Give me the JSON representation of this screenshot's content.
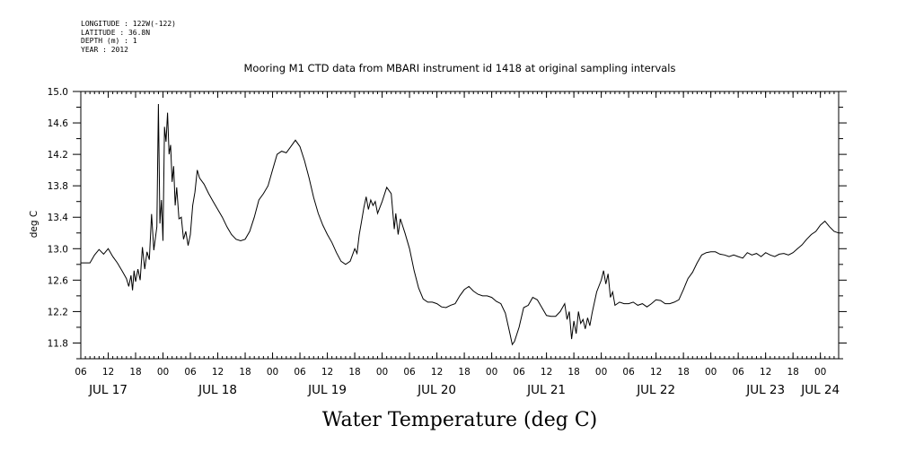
{
  "header": {
    "longitude": "LONGITUDE : 122W(-122)",
    "latitude": "LATITUDE : 36.8N",
    "depth": "DEPTH (m) : 1",
    "year": "YEAR : 2012"
  },
  "chart_data": {
    "type": "line",
    "title": "Mooring M1 CTD data from MBARI instrument id 1418 at original sampling intervals",
    "ylabel": "deg C",
    "xlabel": "Water Temperature (deg C)",
    "ylim": [
      11.6,
      15.0
    ],
    "xlim": [
      "2012-07-17T06:00",
      "2012-07-24T04:00"
    ],
    "grid": false,
    "line_color": "#000000",
    "y_ticks": [
      "11.8",
      "12.2",
      "12.6",
      "13.0",
      "13.4",
      "13.8",
      "14.2",
      "14.6",
      "15.0"
    ],
    "hour_ticks": [
      {
        "t": "2012-07-17T06:00",
        "label": "06"
      },
      {
        "t": "2012-07-17T12:00",
        "label": "12"
      },
      {
        "t": "2012-07-17T18:00",
        "label": "18"
      },
      {
        "t": "2012-07-18T00:00",
        "label": "00"
      },
      {
        "t": "2012-07-18T06:00",
        "label": "06"
      },
      {
        "t": "2012-07-18T12:00",
        "label": "12"
      },
      {
        "t": "2012-07-18T18:00",
        "label": "18"
      },
      {
        "t": "2012-07-19T00:00",
        "label": "00"
      },
      {
        "t": "2012-07-19T06:00",
        "label": "06"
      },
      {
        "t": "2012-07-19T12:00",
        "label": "12"
      },
      {
        "t": "2012-07-19T18:00",
        "label": "18"
      },
      {
        "t": "2012-07-20T00:00",
        "label": "00"
      },
      {
        "t": "2012-07-20T06:00",
        "label": "06"
      },
      {
        "t": "2012-07-20T12:00",
        "label": "12"
      },
      {
        "t": "2012-07-20T18:00",
        "label": "18"
      },
      {
        "t": "2012-07-21T00:00",
        "label": "00"
      },
      {
        "t": "2012-07-21T06:00",
        "label": "06"
      },
      {
        "t": "2012-07-21T12:00",
        "label": "12"
      },
      {
        "t": "2012-07-21T18:00",
        "label": "18"
      },
      {
        "t": "2012-07-22T00:00",
        "label": "00"
      },
      {
        "t": "2012-07-22T06:00",
        "label": "06"
      },
      {
        "t": "2012-07-22T12:00",
        "label": "12"
      },
      {
        "t": "2012-07-22T18:00",
        "label": "18"
      },
      {
        "t": "2012-07-23T00:00",
        "label": "00"
      },
      {
        "t": "2012-07-23T06:00",
        "label": "06"
      },
      {
        "t": "2012-07-23T12:00",
        "label": "12"
      },
      {
        "t": "2012-07-23T18:00",
        "label": "18"
      },
      {
        "t": "2012-07-24T00:00",
        "label": "00"
      }
    ],
    "date_labels": [
      {
        "t": "2012-07-17T12:00",
        "label": "JUL 17"
      },
      {
        "t": "2012-07-18T12:00",
        "label": "JUL 18"
      },
      {
        "t": "2012-07-19T12:00",
        "label": "JUL 19"
      },
      {
        "t": "2012-07-20T12:00",
        "label": "JUL 20"
      },
      {
        "t": "2012-07-21T12:00",
        "label": "JUL 21"
      },
      {
        "t": "2012-07-22T12:00",
        "label": "JUL 22"
      },
      {
        "t": "2012-07-23T12:00",
        "label": "JUL 23"
      },
      {
        "t": "2012-07-24T00:00",
        "label": "JUL 24"
      }
    ],
    "series": [
      {
        "points": [
          [
            "2012-07-17T06:00",
            12.82
          ],
          [
            "2012-07-17T07:00",
            12.82
          ],
          [
            "2012-07-17T08:00",
            12.82
          ],
          [
            "2012-07-17T09:00",
            12.92
          ],
          [
            "2012-07-17T10:00",
            12.99
          ],
          [
            "2012-07-17T11:00",
            12.93
          ],
          [
            "2012-07-17T12:00",
            13.0
          ],
          [
            "2012-07-17T13:00",
            12.9
          ],
          [
            "2012-07-17T14:00",
            12.82
          ],
          [
            "2012-07-17T15:00",
            12.72
          ],
          [
            "2012-07-17T16:00",
            12.62
          ],
          [
            "2012-07-17T16:30",
            12.52
          ],
          [
            "2012-07-17T17:00",
            12.66
          ],
          [
            "2012-07-17T17:20",
            12.47
          ],
          [
            "2012-07-17T17:40",
            12.72
          ],
          [
            "2012-07-17T18:00",
            12.58
          ],
          [
            "2012-07-17T18:30",
            12.74
          ],
          [
            "2012-07-17T19:00",
            12.6
          ],
          [
            "2012-07-17T19:30",
            13.02
          ],
          [
            "2012-07-17T20:00",
            12.74
          ],
          [
            "2012-07-17T20:30",
            12.96
          ],
          [
            "2012-07-17T21:00",
            12.86
          ],
          [
            "2012-07-17T21:30",
            13.44
          ],
          [
            "2012-07-17T22:00",
            12.98
          ],
          [
            "2012-07-17T22:40",
            13.28
          ],
          [
            "2012-07-17T23:00",
            14.84
          ],
          [
            "2012-07-17T23:20",
            13.32
          ],
          [
            "2012-07-17T23:40",
            13.62
          ],
          [
            "2012-07-18T00:00",
            13.1
          ],
          [
            "2012-07-18T00:20",
            14.55
          ],
          [
            "2012-07-18T00:40",
            14.36
          ],
          [
            "2012-07-18T01:00",
            14.73
          ],
          [
            "2012-07-18T01:20",
            14.2
          ],
          [
            "2012-07-18T01:40",
            14.32
          ],
          [
            "2012-07-18T02:00",
            13.85
          ],
          [
            "2012-07-18T02:20",
            14.05
          ],
          [
            "2012-07-18T02:40",
            13.55
          ],
          [
            "2012-07-18T03:00",
            13.78
          ],
          [
            "2012-07-18T03:30",
            13.38
          ],
          [
            "2012-07-18T04:00",
            13.4
          ],
          [
            "2012-07-18T04:30",
            13.12
          ],
          [
            "2012-07-18T05:00",
            13.22
          ],
          [
            "2012-07-18T05:30",
            13.04
          ],
          [
            "2012-07-18T06:00",
            13.18
          ],
          [
            "2012-07-18T06:30",
            13.55
          ],
          [
            "2012-07-18T07:00",
            13.72
          ],
          [
            "2012-07-18T07:30",
            14.0
          ],
          [
            "2012-07-18T08:00",
            13.9
          ],
          [
            "2012-07-18T09:00",
            13.82
          ],
          [
            "2012-07-18T10:00",
            13.7
          ],
          [
            "2012-07-18T11:00",
            13.6
          ],
          [
            "2012-07-18T12:00",
            13.5
          ],
          [
            "2012-07-18T13:00",
            13.4
          ],
          [
            "2012-07-18T14:00",
            13.28
          ],
          [
            "2012-07-18T15:00",
            13.18
          ],
          [
            "2012-07-18T16:00",
            13.12
          ],
          [
            "2012-07-18T17:00",
            13.1
          ],
          [
            "2012-07-18T18:00",
            13.12
          ],
          [
            "2012-07-18T19:00",
            13.22
          ],
          [
            "2012-07-18T20:00",
            13.4
          ],
          [
            "2012-07-18T21:00",
            13.62
          ],
          [
            "2012-07-18T22:00",
            13.7
          ],
          [
            "2012-07-18T23:00",
            13.8
          ],
          [
            "2012-07-19T00:00",
            14.0
          ],
          [
            "2012-07-19T01:00",
            14.2
          ],
          [
            "2012-07-19T02:00",
            14.24
          ],
          [
            "2012-07-19T03:00",
            14.22
          ],
          [
            "2012-07-19T04:00",
            14.3
          ],
          [
            "2012-07-19T05:00",
            14.38
          ],
          [
            "2012-07-19T06:00",
            14.3
          ],
          [
            "2012-07-19T07:00",
            14.12
          ],
          [
            "2012-07-19T08:00",
            13.9
          ],
          [
            "2012-07-19T09:00",
            13.65
          ],
          [
            "2012-07-19T10:00",
            13.45
          ],
          [
            "2012-07-19T11:00",
            13.3
          ],
          [
            "2012-07-19T12:00",
            13.18
          ],
          [
            "2012-07-19T13:00",
            13.08
          ],
          [
            "2012-07-19T14:00",
            12.95
          ],
          [
            "2012-07-19T15:00",
            12.84
          ],
          [
            "2012-07-19T16:00",
            12.8
          ],
          [
            "2012-07-19T17:00",
            12.84
          ],
          [
            "2012-07-19T18:00",
            13.0
          ],
          [
            "2012-07-19T18:30",
            12.94
          ],
          [
            "2012-07-19T19:00",
            13.18
          ],
          [
            "2012-07-19T19:30",
            13.35
          ],
          [
            "2012-07-19T20:00",
            13.52
          ],
          [
            "2012-07-19T20:30",
            13.66
          ],
          [
            "2012-07-19T21:00",
            13.5
          ],
          [
            "2012-07-19T21:30",
            13.62
          ],
          [
            "2012-07-19T22:00",
            13.55
          ],
          [
            "2012-07-19T22:30",
            13.6
          ],
          [
            "2012-07-19T23:00",
            13.45
          ],
          [
            "2012-07-20T00:00",
            13.6
          ],
          [
            "2012-07-20T01:00",
            13.78
          ],
          [
            "2012-07-20T02:00",
            13.7
          ],
          [
            "2012-07-20T02:40",
            13.25
          ],
          [
            "2012-07-20T03:00",
            13.45
          ],
          [
            "2012-07-20T03:30",
            13.18
          ],
          [
            "2012-07-20T04:00",
            13.38
          ],
          [
            "2012-07-20T05:00",
            13.2
          ],
          [
            "2012-07-20T06:00",
            13.0
          ],
          [
            "2012-07-20T07:00",
            12.72
          ],
          [
            "2012-07-20T08:00",
            12.5
          ],
          [
            "2012-07-20T09:00",
            12.36
          ],
          [
            "2012-07-20T10:00",
            12.32
          ],
          [
            "2012-07-20T11:00",
            12.32
          ],
          [
            "2012-07-20T12:00",
            12.3
          ],
          [
            "2012-07-20T13:00",
            12.26
          ],
          [
            "2012-07-20T14:00",
            12.25
          ],
          [
            "2012-07-20T15:00",
            12.28
          ],
          [
            "2012-07-20T16:00",
            12.3
          ],
          [
            "2012-07-20T17:00",
            12.4
          ],
          [
            "2012-07-20T18:00",
            12.48
          ],
          [
            "2012-07-20T19:00",
            12.52
          ],
          [
            "2012-07-20T20:00",
            12.46
          ],
          [
            "2012-07-20T21:00",
            12.42
          ],
          [
            "2012-07-20T22:00",
            12.4
          ],
          [
            "2012-07-20T23:00",
            12.4
          ],
          [
            "2012-07-21T00:00",
            12.38
          ],
          [
            "2012-07-21T01:00",
            12.33
          ],
          [
            "2012-07-21T02:00",
            12.3
          ],
          [
            "2012-07-21T03:00",
            12.18
          ],
          [
            "2012-07-21T04:00",
            11.92
          ],
          [
            "2012-07-21T04:30",
            11.78
          ],
          [
            "2012-07-21T05:00",
            11.82
          ],
          [
            "2012-07-21T06:00",
            12.0
          ],
          [
            "2012-07-21T07:00",
            12.25
          ],
          [
            "2012-07-21T08:00",
            12.28
          ],
          [
            "2012-07-21T09:00",
            12.38
          ],
          [
            "2012-07-21T10:00",
            12.35
          ],
          [
            "2012-07-21T11:00",
            12.25
          ],
          [
            "2012-07-21T12:00",
            12.15
          ],
          [
            "2012-07-21T13:00",
            12.14
          ],
          [
            "2012-07-21T14:00",
            12.14
          ],
          [
            "2012-07-21T15:00",
            12.2
          ],
          [
            "2012-07-21T16:00",
            12.3
          ],
          [
            "2012-07-21T16:30",
            12.1
          ],
          [
            "2012-07-21T17:00",
            12.2
          ],
          [
            "2012-07-21T17:30",
            11.85
          ],
          [
            "2012-07-21T18:00",
            12.08
          ],
          [
            "2012-07-21T18:30",
            11.92
          ],
          [
            "2012-07-21T19:00",
            12.2
          ],
          [
            "2012-07-21T19:30",
            12.05
          ],
          [
            "2012-07-21T20:00",
            12.1
          ],
          [
            "2012-07-21T20:30",
            11.98
          ],
          [
            "2012-07-21T21:00",
            12.12
          ],
          [
            "2012-07-21T21:30",
            12.02
          ],
          [
            "2012-07-21T22:00",
            12.18
          ],
          [
            "2012-07-21T23:00",
            12.45
          ],
          [
            "2012-07-22T00:00",
            12.6
          ],
          [
            "2012-07-22T00:30",
            12.72
          ],
          [
            "2012-07-22T01:00",
            12.55
          ],
          [
            "2012-07-22T01:30",
            12.68
          ],
          [
            "2012-07-22T02:00",
            12.38
          ],
          [
            "2012-07-22T02:30",
            12.45
          ],
          [
            "2012-07-22T03:00",
            12.28
          ],
          [
            "2012-07-22T04:00",
            12.32
          ],
          [
            "2012-07-22T05:00",
            12.3
          ],
          [
            "2012-07-22T06:00",
            12.3
          ],
          [
            "2012-07-22T07:00",
            12.32
          ],
          [
            "2012-07-22T08:00",
            12.28
          ],
          [
            "2012-07-22T09:00",
            12.3
          ],
          [
            "2012-07-22T10:00",
            12.26
          ],
          [
            "2012-07-22T11:00",
            12.3
          ],
          [
            "2012-07-22T12:00",
            12.35
          ],
          [
            "2012-07-22T13:00",
            12.34
          ],
          [
            "2012-07-22T14:00",
            12.3
          ],
          [
            "2012-07-22T15:00",
            12.3
          ],
          [
            "2012-07-22T16:00",
            12.32
          ],
          [
            "2012-07-22T17:00",
            12.35
          ],
          [
            "2012-07-22T18:00",
            12.48
          ],
          [
            "2012-07-22T19:00",
            12.62
          ],
          [
            "2012-07-22T20:00",
            12.7
          ],
          [
            "2012-07-22T21:00",
            12.82
          ],
          [
            "2012-07-22T22:00",
            12.92
          ],
          [
            "2012-07-22T23:00",
            12.95
          ],
          [
            "2012-07-23T00:00",
            12.96
          ],
          [
            "2012-07-23T01:00",
            12.96
          ],
          [
            "2012-07-23T02:00",
            12.93
          ],
          [
            "2012-07-23T03:00",
            12.92
          ],
          [
            "2012-07-23T04:00",
            12.9
          ],
          [
            "2012-07-23T05:00",
            12.92
          ],
          [
            "2012-07-23T06:00",
            12.9
          ],
          [
            "2012-07-23T07:00",
            12.88
          ],
          [
            "2012-07-23T08:00",
            12.95
          ],
          [
            "2012-07-23T09:00",
            12.92
          ],
          [
            "2012-07-23T10:00",
            12.94
          ],
          [
            "2012-07-23T11:00",
            12.9
          ],
          [
            "2012-07-23T12:00",
            12.95
          ],
          [
            "2012-07-23T13:00",
            12.92
          ],
          [
            "2012-07-23T14:00",
            12.9
          ],
          [
            "2012-07-23T15:00",
            12.93
          ],
          [
            "2012-07-23T16:00",
            12.94
          ],
          [
            "2012-07-23T17:00",
            12.92
          ],
          [
            "2012-07-23T18:00",
            12.95
          ],
          [
            "2012-07-23T19:00",
            13.0
          ],
          [
            "2012-07-23T20:00",
            13.05
          ],
          [
            "2012-07-23T21:00",
            13.12
          ],
          [
            "2012-07-23T22:00",
            13.18
          ],
          [
            "2012-07-23T23:00",
            13.22
          ],
          [
            "2012-07-24T00:00",
            13.3
          ],
          [
            "2012-07-24T01:00",
            13.35
          ],
          [
            "2012-07-24T02:00",
            13.28
          ],
          [
            "2012-07-24T03:00",
            13.22
          ],
          [
            "2012-07-24T04:00",
            13.2
          ]
        ]
      }
    ]
  }
}
